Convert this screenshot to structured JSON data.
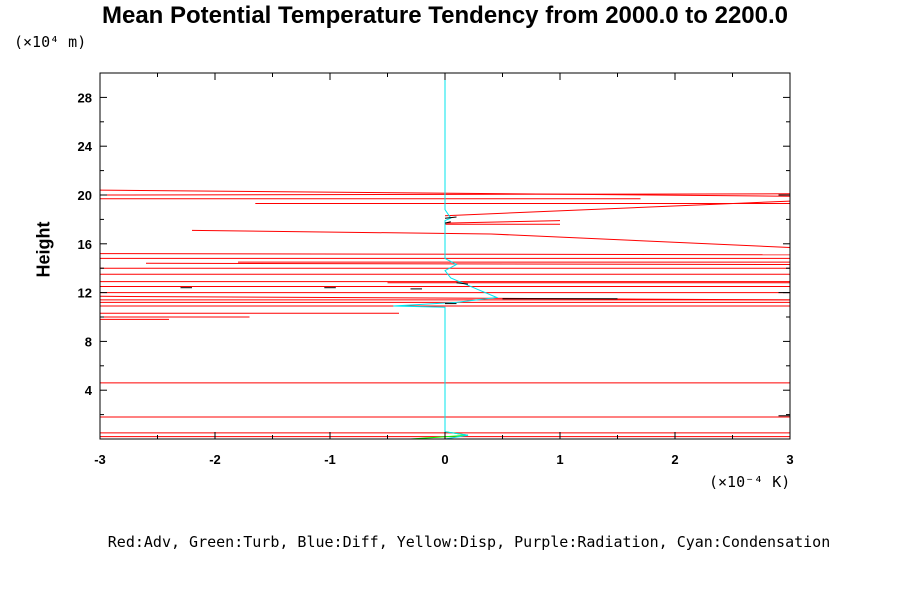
{
  "chart_data": {
    "type": "line",
    "title": "Mean Potential Temperature Tendency from 2000.0 to 2200.0",
    "ylabel": "Height",
    "y_unit": "(×10⁴ m)",
    "x_unit": "(×10⁻⁴ K)",
    "xlim": [
      -3,
      3
    ],
    "ylim": [
      0,
      30
    ],
    "x_ticks": [
      -3,
      -2,
      -1,
      0,
      1,
      2,
      3
    ],
    "y_ticks": [
      4,
      8,
      12,
      16,
      20,
      24,
      28
    ],
    "x_tick_labels": [
      "-3",
      "-2",
      "-1",
      "0",
      "1",
      "2",
      "3"
    ],
    "y_tick_labels": [
      "4",
      "8",
      "12",
      "16",
      "20",
      "24",
      "28"
    ],
    "legend_text": "Red:Adv, Green:Turb, Blue:Diff, Yellow:Disp, Purple:Radiation, Cyan:Condensation",
    "series": [
      {
        "name": "Adv",
        "color": "#ff0000",
        "segments": [
          [
            [
              -3.0,
              20.4
            ],
            [
              3.0,
              19.9
            ]
          ],
          [
            [
              -3.0,
              20.0
            ],
            [
              3.0,
              20.1
            ]
          ],
          [
            [
              -3.0,
              19.7
            ],
            [
              1.7,
              19.7
            ]
          ],
          [
            [
              -1.65,
              19.3
            ],
            [
              3.0,
              19.3
            ]
          ],
          [
            [
              3.0,
              19.5
            ],
            [
              0.0,
              18.3
            ]
          ],
          [
            [
              0.0,
              17.7
            ],
            [
              1.0,
              17.9
            ]
          ],
          [
            [
              0.0,
              17.6
            ],
            [
              1.0,
              17.6
            ]
          ],
          [
            [
              -2.2,
              17.1
            ],
            [
              0.4,
              16.8
            ]
          ],
          [
            [
              0.4,
              16.8
            ],
            [
              3.0,
              15.7
            ]
          ],
          [
            [
              -3.0,
              15.2
            ],
            [
              3.0,
              15.1
            ]
          ],
          [
            [
              -3.0,
              14.8
            ],
            [
              3.0,
              14.8
            ]
          ],
          [
            [
              -2.6,
              14.4
            ],
            [
              3.0,
              14.3
            ]
          ],
          [
            [
              -1.8,
              14.5
            ],
            [
              3.0,
              14.5
            ]
          ],
          [
            [
              -3.0,
              14.0
            ],
            [
              3.0,
              14.0
            ]
          ],
          [
            [
              -3.0,
              13.5
            ],
            [
              3.0,
              13.5
            ]
          ],
          [
            [
              -3.0,
              12.9
            ],
            [
              3.0,
              12.9
            ]
          ],
          [
            [
              -0.5,
              12.8
            ],
            [
              3.0,
              12.8
            ]
          ],
          [
            [
              -3.0,
              12.5
            ],
            [
              3.0,
              12.5
            ]
          ],
          [
            [
              -3.0,
              12.0
            ],
            [
              3.0,
              12.0
            ]
          ],
          [
            [
              -3.0,
              11.7
            ],
            [
              3.0,
              11.4
            ]
          ],
          [
            [
              -3.0,
              11.4
            ],
            [
              3.0,
              11.4
            ]
          ],
          [
            [
              -3.0,
              11.2
            ],
            [
              3.0,
              11.2
            ]
          ],
          [
            [
              -3.0,
              10.9
            ],
            [
              3.0,
              10.9
            ]
          ],
          [
            [
              -3.0,
              10.3
            ],
            [
              -0.4,
              10.3
            ]
          ],
          [
            [
              -3.0,
              10.0
            ],
            [
              -1.7,
              10.0
            ]
          ],
          [
            [
              -3.0,
              9.8
            ],
            [
              -2.4,
              9.8
            ]
          ],
          [
            [
              -3.0,
              4.6
            ],
            [
              3.0,
              4.6
            ]
          ],
          [
            [
              -3.0,
              1.8
            ],
            [
              3.0,
              1.8
            ]
          ],
          [
            [
              -3.0,
              0.5
            ],
            [
              3.0,
              0.5
            ]
          ],
          [
            [
              -3.0,
              0.2
            ],
            [
              3.0,
              0.2
            ]
          ]
        ]
      },
      {
        "name": "Turb",
        "color": "#00ff00",
        "segments": [
          [
            [
              0.0,
              2.4
            ],
            [
              0.0,
              0.6
            ],
            [
              0.2,
              0.3
            ],
            [
              -0.3,
              0.0
            ]
          ]
        ]
      },
      {
        "name": "Condensation",
        "color": "#00e5ee",
        "segments": [
          [
            [
              0.0,
              30.0
            ],
            [
              0.0,
              18.8
            ],
            [
              0.05,
              18.1
            ],
            [
              0.0,
              17.9
            ],
            [
              0.0,
              14.8
            ],
            [
              0.1,
              14.3
            ],
            [
              0.0,
              13.8
            ],
            [
              0.05,
              13.2
            ],
            [
              0.2,
              12.6
            ],
            [
              0.45,
              11.6
            ],
            [
              0.1,
              11.2
            ],
            [
              -0.45,
              10.9
            ],
            [
              0.0,
              10.8
            ],
            [
              0.0,
              0.6
            ],
            [
              0.2,
              0.3
            ],
            [
              0.0,
              0.0
            ]
          ]
        ]
      },
      {
        "name": "Black",
        "color": "#000000",
        "segments": [
          [
            [
              0.0,
              18.1
            ],
            [
              0.1,
              18.2
            ]
          ],
          [
            [
              0.0,
              17.7
            ],
            [
              0.05,
              17.8
            ]
          ],
          [
            [
              -2.3,
              12.4
            ],
            [
              -2.2,
              12.4
            ]
          ],
          [
            [
              -1.05,
              12.4
            ],
            [
              -0.95,
              12.4
            ]
          ],
          [
            [
              -0.3,
              12.3
            ],
            [
              -0.2,
              12.3
            ]
          ],
          [
            [
              0.1,
              12.8
            ],
            [
              0.2,
              12.7
            ]
          ],
          [
            [
              0.5,
              11.5
            ],
            [
              1.5,
              11.5
            ]
          ],
          [
            [
              0.0,
              11.1
            ],
            [
              0.1,
              11.1
            ]
          ],
          [
            [
              2.9,
              12.0
            ],
            [
              3.0,
              12.0
            ]
          ],
          [
            [
              2.9,
              20.0
            ],
            [
              3.0,
              20.0
            ]
          ],
          [
            [
              2.9,
              1.9
            ],
            [
              3.0,
              1.9
            ]
          ]
        ]
      }
    ]
  }
}
